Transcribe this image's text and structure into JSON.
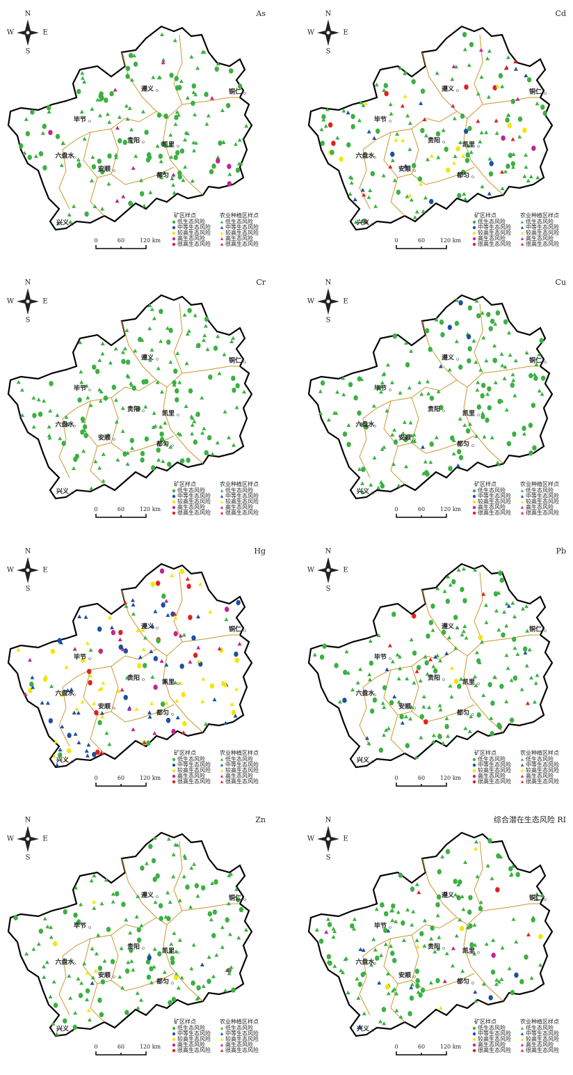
{
  "panels": [
    {
      "title": "As"
    },
    {
      "title": "Cd"
    },
    {
      "title": "Cr"
    },
    {
      "title": "Cu"
    },
    {
      "title": "Hg"
    },
    {
      "title": "Pb"
    },
    {
      "title": "Zn"
    },
    {
      "title": "综合潜在生态风险 RI"
    }
  ],
  "compass": {
    "n": "N",
    "w": "W",
    "e": "E",
    "s": "S"
  },
  "cities": [
    "遵义",
    "铜仁",
    "毕节",
    "贵阳",
    "凯里",
    "六盘水",
    "安顺",
    "都匀",
    "兴义"
  ],
  "legend": {
    "mine": "矿区样点",
    "farm": "农业种植区样点",
    "levels": [
      "低生态风险",
      "中等生态风险",
      "较高生态风险",
      "高生态风险",
      "很高生态风险"
    ]
  },
  "scale": [
    "0",
    "60",
    "120 km"
  ]
}
